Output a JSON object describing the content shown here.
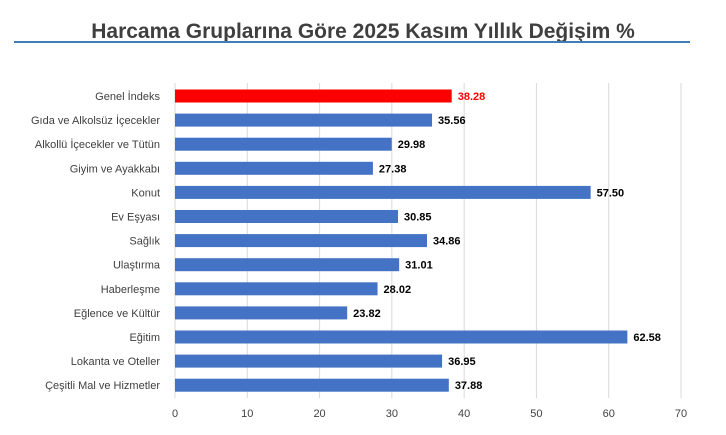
{
  "chart_data": {
    "type": "bar",
    "orientation": "horizontal",
    "title": "Harcama Gruplarına Göre 2025 Kasım Yıllık Değişim %",
    "xlabel": "",
    "ylabel": "",
    "categories": [
      "Genel İndeks",
      "Gıda ve Alkolsüz İçecekler",
      "Alkollü İçecekler ve Tütün",
      "Giyim ve Ayakkabı",
      "Konut",
      "Ev Eşyası",
      "Sağlık",
      "Ulaştırma",
      "Haberleşme",
      "Eğlence ve Kültür",
      "Eğitim",
      "Lokanta ve Oteller",
      "Çeşitli Mal ve Hizmetler"
    ],
    "values": [
      38.28,
      35.56,
      29.98,
      27.38,
      57.5,
      30.85,
      34.86,
      31.01,
      28.02,
      23.82,
      62.58,
      36.95,
      37.88
    ],
    "value_labels": [
      "38.28",
      "35.56",
      "29.98",
      "27.38",
      "57.50",
      "30.85",
      "34.86",
      "31.01",
      "28.02",
      "23.82",
      "62.58",
      "36.95",
      "37.88"
    ],
    "xlim": [
      0,
      70
    ],
    "xticks": [
      0,
      10,
      20,
      30,
      40,
      50,
      60,
      70
    ],
    "grid": "vertical",
    "legend": "none",
    "highlight_index": 0,
    "colors": {
      "bar": "#4472c4",
      "highlight": "#ff0000",
      "highlight_label": "#ff0000",
      "label": "#000000",
      "grid": "#d9d9d9",
      "axis_text": "#404040"
    }
  }
}
